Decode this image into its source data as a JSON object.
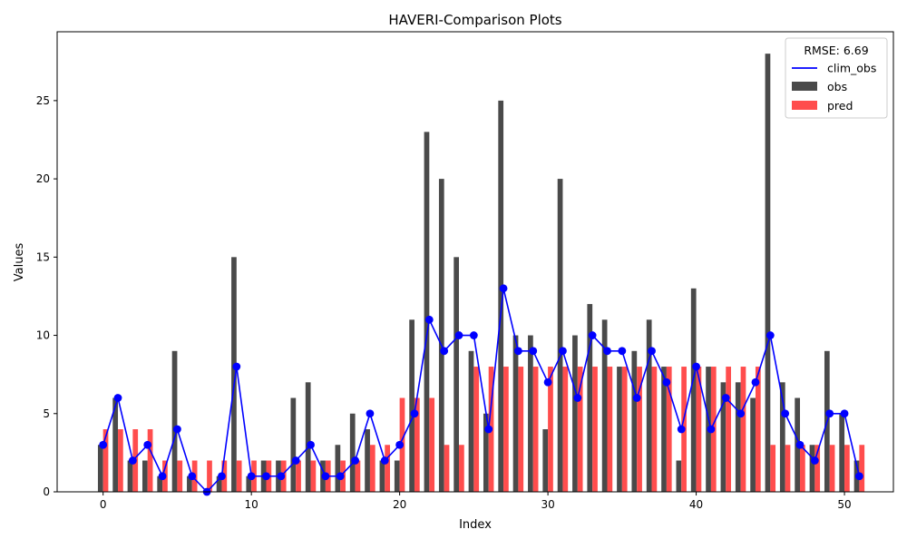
{
  "chart_data": {
    "type": "bar",
    "title": "HAVERI-Comparison Plots",
    "xlabel": "Index",
    "ylabel": "Values",
    "xlim": [
      -3.1,
      53.3
    ],
    "ylim": [
      0,
      29.4
    ],
    "xticks": [
      0,
      10,
      20,
      30,
      40,
      50
    ],
    "yticks": [
      0,
      5,
      10,
      15,
      20,
      25
    ],
    "grid": false,
    "legend": {
      "title": "RMSE: 6.69",
      "placement": "top-right"
    },
    "x": [
      0,
      1,
      2,
      3,
      4,
      5,
      6,
      7,
      8,
      9,
      10,
      11,
      12,
      13,
      14,
      15,
      16,
      17,
      18,
      19,
      20,
      21,
      22,
      23,
      24,
      25,
      26,
      27,
      28,
      29,
      30,
      31,
      32,
      33,
      34,
      35,
      36,
      37,
      38,
      39,
      40,
      41,
      42,
      43,
      44,
      45,
      46,
      47,
      48,
      49,
      50,
      51
    ],
    "series": [
      {
        "name": "clim_obs",
        "kind": "line",
        "color": "#0000ff",
        "marker": "circle",
        "values": [
          3,
          6,
          2,
          3,
          1,
          4,
          1,
          0,
          1,
          8,
          1,
          1,
          1,
          2,
          3,
          1,
          1,
          2,
          5,
          2,
          3,
          5,
          11,
          9,
          10,
          10,
          4,
          13,
          9,
          9,
          7,
          9,
          6,
          10,
          9,
          9,
          6,
          9,
          7,
          4,
          8,
          4,
          6,
          5,
          7,
          10,
          5,
          3,
          2,
          5,
          5,
          1
        ]
      },
      {
        "name": "obs",
        "kind": "bar",
        "color": "#4a4a4a",
        "values": [
          3,
          6,
          2,
          2,
          1,
          9,
          1,
          0,
          1,
          15,
          1,
          2,
          2,
          6,
          7,
          2,
          3,
          5,
          4,
          2,
          2,
          11,
          23,
          20,
          15,
          9,
          5,
          25,
          10,
          10,
          4,
          20,
          10,
          12,
          11,
          8,
          9,
          11,
          8,
          2,
          13,
          8,
          7,
          7,
          6,
          28,
          7,
          6,
          3,
          9,
          5,
          2
        ]
      },
      {
        "name": "pred",
        "kind": "bar",
        "color": "#ff4d4d",
        "values": [
          4,
          4,
          4,
          4,
          2,
          2,
          2,
          2,
          2,
          2,
          2,
          2,
          2,
          2,
          2,
          2,
          2,
          2,
          3,
          3,
          6,
          6,
          6,
          3,
          3,
          8,
          8,
          8,
          8,
          8,
          8,
          8,
          8,
          8,
          8,
          8,
          8,
          8,
          8,
          8,
          8,
          8,
          8,
          8,
          8,
          3,
          3,
          3,
          3,
          3,
          3,
          3
        ]
      }
    ]
  }
}
